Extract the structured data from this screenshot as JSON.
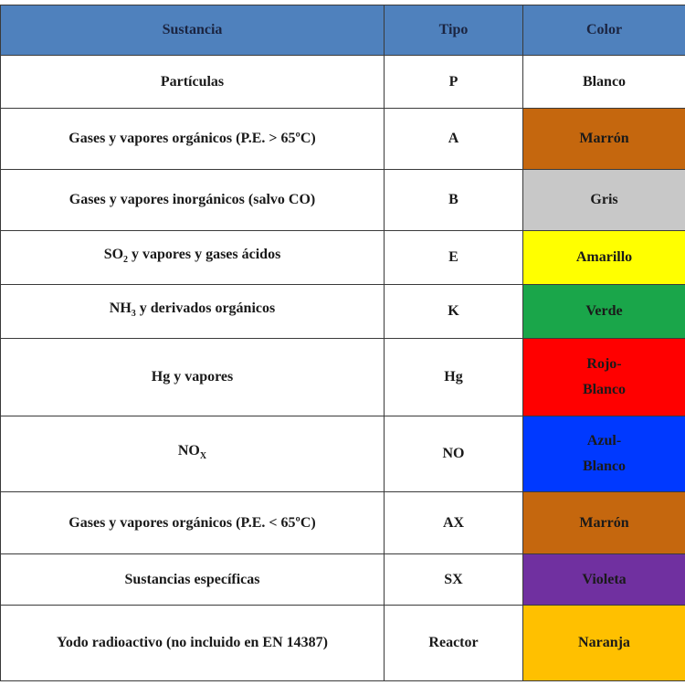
{
  "table": {
    "header": [
      "Sustancia",
      "Tipo",
      "Color"
    ],
    "header_fill": "#4f81bd",
    "rows": [
      {
        "substance": "Partículas",
        "type": "P",
        "color": "Blanco",
        "fill": "#ffffff"
      },
      {
        "substance": "Gases y vapores orgánicos (P.E. > 65ºC)",
        "type": "A",
        "color": "Marrón",
        "fill": "#c5670e"
      },
      {
        "substance": "Gases y vapores inorgánicos (salvo CO)",
        "type": "B",
        "color": "Gris",
        "fill": "#c8c8c8"
      },
      {
        "substance": {
          "base": "SO",
          "sub": "2",
          "rest": " y vapores y gases ácidos"
        },
        "type": "E",
        "color": "Amarillo",
        "fill": "#ffff00"
      },
      {
        "substance": {
          "base": "NH",
          "sub": "3",
          "rest": " y derivados orgánicos"
        },
        "type": "K",
        "color": "Verde",
        "fill": "#1aa64a"
      },
      {
        "substance": "Hg y vapores",
        "type": "Hg",
        "color": "Rojo-Blanco",
        "fill": "#ff0000"
      },
      {
        "substance": {
          "base": "NO",
          "sub": "X"
        },
        "type": "NO",
        "color": "Azul-Blanco",
        "fill": "#0039ff"
      },
      {
        "substance": "Gases y vapores orgánicos (P.E. < 65ºC)",
        "type": "AX",
        "color": "Marrón",
        "fill": "#c5670e"
      },
      {
        "substance": "Sustancias específicas",
        "type": "SX",
        "color": "Violeta",
        "fill": "#7030a0"
      },
      {
        "substance": "Yodo radioactivo (no incluido en EN 14387)",
        "type": "Reactor",
        "color": "Naranja",
        "fill": "#ffc000"
      }
    ]
  }
}
